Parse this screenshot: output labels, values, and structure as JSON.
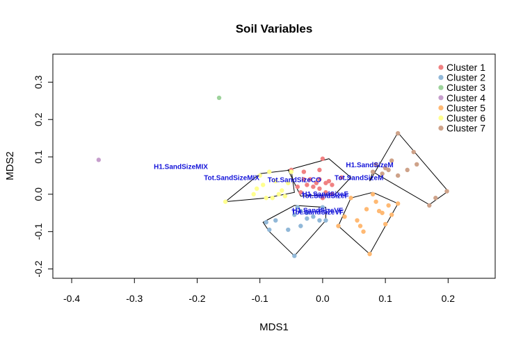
{
  "chart_data": {
    "type": "scatter",
    "title": "Soil Variables",
    "xlabel": "MDS1",
    "ylabel": "MDS2",
    "xlim": [
      -0.43,
      0.275
    ],
    "ylim": [
      -0.225,
      0.375
    ],
    "xticks": [
      -0.4,
      -0.3,
      -0.2,
      -0.1,
      0.0,
      0.1,
      0.2
    ],
    "xtick_labels": [
      "-0.4",
      "-0.3",
      "-0.2",
      "-0.1",
      "0.0",
      "0.1",
      "0.2"
    ],
    "yticks": [
      -0.2,
      -0.1,
      0.0,
      0.1,
      0.2,
      0.3
    ],
    "ytick_labels": [
      "-0.2",
      "-0.1",
      "0.0",
      "0.1",
      "0.2",
      "0.3"
    ],
    "legend_position": "top-right",
    "series": [
      {
        "name": "Cluster 1",
        "color": "#e41a1c",
        "hull": true,
        "points": [
          [
            -0.05,
            0.065
          ],
          [
            -0.03,
            0.06
          ],
          [
            0.0,
            0.095
          ],
          [
            -0.005,
            0.065
          ],
          [
            0.03,
            0.045
          ],
          [
            -0.04,
            0.02
          ],
          [
            -0.03,
            0.04
          ],
          [
            -0.02,
            0.04
          ],
          [
            -0.01,
            0.03
          ],
          [
            -0.005,
            0.04
          ],
          [
            0.005,
            0.03
          ],
          [
            0.01,
            0.035
          ],
          [
            0.015,
            0.025
          ],
          [
            -0.025,
            0.025
          ],
          [
            -0.015,
            0.02
          ],
          [
            -0.005,
            0.015
          ],
          [
            0.005,
            0.005
          ],
          [
            0.015,
            0.0
          ],
          [
            -0.035,
            0.005
          ],
          [
            0.0,
            -0.01
          ]
        ]
      },
      {
        "name": "Cluster 2",
        "color": "#377eb8",
        "hull": true,
        "points": [
          [
            -0.09,
            -0.075
          ],
          [
            -0.085,
            -0.095
          ],
          [
            -0.075,
            -0.07
          ],
          [
            -0.055,
            -0.095
          ],
          [
            -0.045,
            -0.055
          ],
          [
            -0.035,
            -0.085
          ],
          [
            -0.025,
            -0.065
          ],
          [
            -0.015,
            -0.06
          ],
          [
            -0.005,
            -0.07
          ],
          [
            -0.035,
            -0.045
          ],
          [
            0.0,
            -0.035
          ],
          [
            0.005,
            -0.07
          ],
          [
            -0.045,
            -0.165
          ],
          [
            -0.04,
            -0.035
          ],
          [
            -0.025,
            -0.05
          ]
        ]
      },
      {
        "name": "Cluster 3",
        "color": "#4daf4a",
        "hull": false,
        "points": [
          [
            -0.165,
            0.258
          ]
        ]
      },
      {
        "name": "Cluster 4",
        "color": "#984ea3",
        "hull": false,
        "points": [
          [
            -0.357,
            0.092
          ]
        ]
      },
      {
        "name": "Cluster 5",
        "color": "#ff7f00",
        "hull": true,
        "points": [
          [
            0.025,
            -0.085
          ],
          [
            0.035,
            -0.06
          ],
          [
            0.045,
            -0.01
          ],
          [
            0.055,
            -0.07
          ],
          [
            0.06,
            -0.085
          ],
          [
            0.065,
            -0.1
          ],
          [
            0.07,
            -0.04
          ],
          [
            0.075,
            -0.16
          ],
          [
            0.08,
            0.0
          ],
          [
            0.085,
            -0.02
          ],
          [
            0.09,
            -0.045
          ],
          [
            0.1,
            -0.08
          ],
          [
            0.105,
            -0.03
          ],
          [
            0.11,
            -0.055
          ],
          [
            0.12,
            -0.025
          ],
          [
            0.095,
            -0.05
          ]
        ]
      },
      {
        "name": "Cluster 6",
        "color": "#ffff33",
        "hull": true,
        "points": [
          [
            -0.155,
            -0.02
          ],
          [
            -0.11,
            0.0
          ],
          [
            -0.105,
            0.015
          ],
          [
            -0.095,
            0.025
          ],
          [
            -0.09,
            -0.01
          ],
          [
            -0.08,
            -0.01
          ],
          [
            -0.085,
            0.06
          ],
          [
            -0.07,
            0.0
          ],
          [
            -0.065,
            0.01
          ],
          [
            -0.06,
            -0.005
          ],
          [
            -0.055,
            0.03
          ],
          [
            -0.05,
            0.06
          ],
          [
            -0.075,
            0.035
          ],
          [
            -0.1,
            0.05
          ]
        ]
      },
      {
        "name": "Cluster 7",
        "color": "#a65628",
        "hull": true,
        "points": [
          [
            0.08,
            0.06
          ],
          [
            0.085,
            0.08
          ],
          [
            0.095,
            0.055
          ],
          [
            0.105,
            0.065
          ],
          [
            0.11,
            0.09
          ],
          [
            0.12,
            0.05
          ],
          [
            0.12,
            0.163
          ],
          [
            0.135,
            0.065
          ],
          [
            0.145,
            0.113
          ],
          [
            0.15,
            0.08
          ],
          [
            0.17,
            -0.03
          ],
          [
            0.18,
            -0.01
          ],
          [
            0.198,
            0.008
          ],
          [
            0.1,
            0.07
          ]
        ]
      }
    ],
    "hull_vertices": [
      [
        [
          -0.055,
          0.065
        ],
        [
          0.01,
          0.095
        ],
        [
          0.045,
          0.045
        ],
        [
          0.02,
          0.0
        ],
        [
          -0.035,
          -0.005
        ]
      ],
      [
        [
          -0.095,
          -0.075
        ],
        [
          -0.085,
          -0.1
        ],
        [
          -0.045,
          -0.165
        ],
        [
          0.005,
          -0.07
        ],
        [
          0.005,
          -0.035
        ],
        [
          -0.045,
          -0.03
        ]
      ],
      [],
      [],
      [
        [
          0.025,
          -0.085
        ],
        [
          0.045,
          -0.01
        ],
        [
          0.08,
          0.005
        ],
        [
          0.12,
          -0.025
        ],
        [
          0.11,
          -0.055
        ],
        [
          0.075,
          -0.16
        ]
      ],
      [
        [
          -0.155,
          -0.02
        ],
        [
          -0.09,
          -0.01
        ],
        [
          -0.045,
          0.005
        ],
        [
          -0.05,
          0.065
        ],
        [
          -0.1,
          0.055
        ]
      ],
      [
        [
          0.075,
          0.035
        ],
        [
          0.12,
          0.165
        ],
        [
          0.2,
          0.008
        ],
        [
          0.17,
          -0.028
        ],
        [
          0.08,
          0.06
        ]
      ]
    ],
    "variable_labels": [
      {
        "text": "H1.SandSizeMIX",
        "x": -0.226,
        "y": 0.075
      },
      {
        "text": "Tot.SandSizeMIX",
        "x": -0.145,
        "y": 0.045
      },
      {
        "text": "Tot.SandSizeCO",
        "x": -0.045,
        "y": 0.04
      },
      {
        "text": "H1.SandSizeM",
        "x": 0.075,
        "y": 0.08
      },
      {
        "text": "Tot.SandSizeM",
        "x": 0.058,
        "y": 0.045
      },
      {
        "text": "H1.SandSizeF",
        "x": 0.004,
        "y": 0.002
      },
      {
        "text": "Tot.SandSizeF",
        "x": 0.004,
        "y": -0.003
      },
      {
        "text": "H1.SandSizeVF",
        "x": -0.008,
        "y": -0.042
      },
      {
        "text": "Tot.SandSizeVF",
        "x": -0.008,
        "y": -0.047
      }
    ]
  }
}
